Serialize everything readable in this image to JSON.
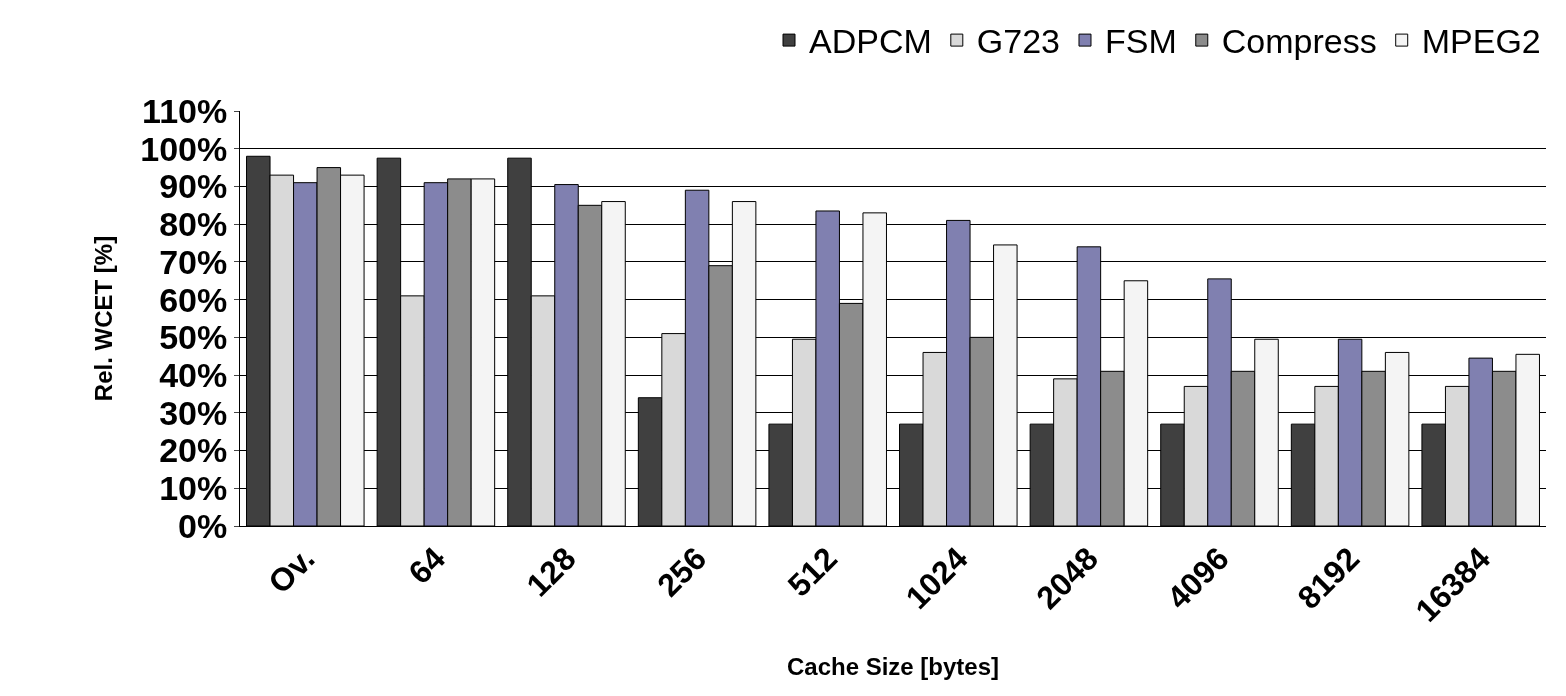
{
  "chart_data": {
    "type": "bar",
    "xlabel": "Cache Size [bytes]",
    "ylabel": "Rel. WCET [%]",
    "categories": [
      "Ov.",
      "64",
      "128",
      "256",
      "512",
      "1024",
      "2048",
      "4096",
      "8192",
      "16384"
    ],
    "series": [
      {
        "name": "ADPCM",
        "color": "#404040",
        "values": [
          98,
          97.5,
          97.5,
          34,
          27,
          27,
          27,
          27,
          27,
          27
        ]
      },
      {
        "name": "G723",
        "color": "#d9d9d9",
        "values": [
          93,
          61,
          61,
          51,
          49.5,
          46,
          39,
          37,
          37,
          37
        ]
      },
      {
        "name": "FSM",
        "color": "#8080b0",
        "values": [
          91,
          91,
          90.5,
          89,
          83.5,
          81,
          74,
          65.5,
          49.5,
          44.5
        ]
      },
      {
        "name": "Compress",
        "color": "#8c8c8c",
        "values": [
          95,
          92,
          85,
          69,
          59,
          50,
          41,
          41,
          41,
          41
        ]
      },
      {
        "name": "MPEG2",
        "color": "#f4f4f4",
        "values": [
          93,
          92,
          86,
          86,
          83,
          74.5,
          65,
          49.5,
          46,
          45.5
        ]
      }
    ],
    "ylim": [
      0,
      110
    ],
    "yticks": [
      {
        "value": 0,
        "label": "0%"
      },
      {
        "value": 10,
        "label": "10%"
      },
      {
        "value": 20,
        "label": "20%"
      },
      {
        "value": 30,
        "label": "30%"
      },
      {
        "value": 40,
        "label": "40%"
      },
      {
        "value": 50,
        "label": "50%"
      },
      {
        "value": 60,
        "label": "60%"
      },
      {
        "value": 70,
        "label": "70%"
      },
      {
        "value": 80,
        "label": "80%"
      },
      {
        "value": 90,
        "label": "90%"
      },
      {
        "value": 100,
        "label": "100%"
      },
      {
        "value": 110,
        "label": "110%"
      }
    ],
    "grid": "y",
    "legend": "top right"
  }
}
